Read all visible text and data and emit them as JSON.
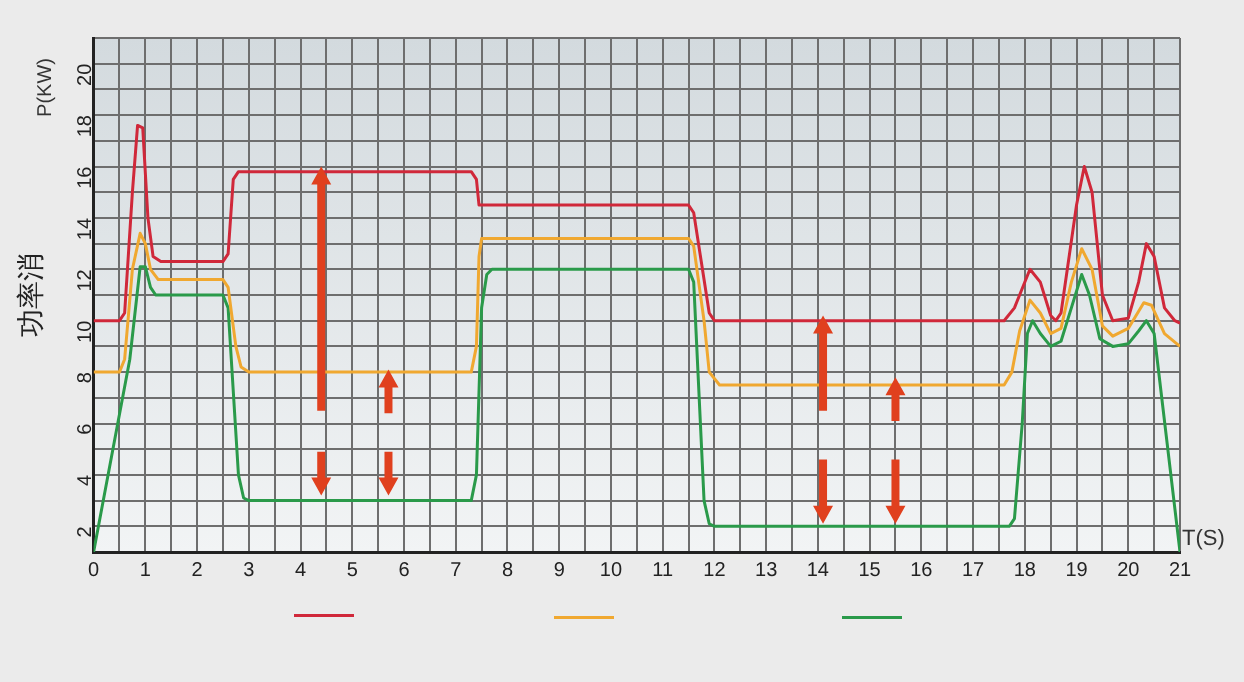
{
  "chart_data": {
    "type": "line",
    "ylabel": "功率消",
    "xlabel": "T(S)",
    "annotations": [
      "P(KW)"
    ],
    "xlim": [
      0,
      21
    ],
    "ylim": [
      1,
      21
    ],
    "xticks": [
      0,
      {
        "value": 0.5,
        "label": null
      },
      1,
      {
        "value": 1.5,
        "label": null
      },
      2,
      {
        "value": 2.5,
        "label": null
      },
      3,
      {
        "value": 3.5,
        "label": null
      },
      4,
      {
        "value": 4.5,
        "label": null
      },
      5,
      {
        "value": 5.5,
        "label": null
      },
      6,
      {
        "value": 6.5,
        "label": null
      },
      7,
      {
        "value": 7.5,
        "label": null
      },
      8,
      {
        "value": 8.5,
        "label": null
      },
      9,
      {
        "value": 9.5,
        "label": null
      },
      10,
      {
        "value": 10.5,
        "label": null
      },
      11,
      {
        "value": 11.5,
        "label": null
      },
      12,
      {
        "value": 12.5,
        "label": null
      },
      13,
      {
        "value": 13.5,
        "label": null
      },
      14,
      {
        "value": 14.5,
        "label": null
      },
      15,
      {
        "value": 15.5,
        "label": null
      },
      16,
      {
        "value": 16.5,
        "label": null
      },
      17,
      {
        "value": 17.5,
        "label": null
      },
      18,
      {
        "value": 18.5,
        "label": null
      },
      19,
      {
        "value": 19.5,
        "label": null
      },
      20,
      {
        "value": 20.5,
        "label": null
      },
      21
    ],
    "yticks": [
      {
        "value": 1,
        "label": null
      },
      2,
      {
        "value": 3,
        "label": null
      },
      4,
      {
        "value": 5,
        "label": null
      },
      6,
      {
        "value": 7,
        "label": null
      },
      8,
      {
        "value": 9,
        "label": null
      },
      10,
      {
        "value": 11,
        "label": null
      },
      12,
      {
        "value": 13,
        "label": null
      },
      14,
      {
        "value": 15,
        "label": null
      },
      16,
      {
        "value": 17,
        "label": null
      },
      18,
      {
        "value": 19,
        "label": null
      },
      20,
      {
        "value": 21,
        "label": null
      }
    ],
    "grid": true,
    "marker": "none",
    "line_style": "solid",
    "series": [
      {
        "color": "#d0283a",
        "x": [
          0,
          0.5,
          0.6,
          0.75,
          0.85,
          0.95,
          1.05,
          1.15,
          1.3,
          2.5,
          2.6,
          2.7,
          2.8,
          7.3,
          7.4,
          7.45,
          11.5,
          11.6,
          11.9,
          12,
          17.6,
          17.8,
          18.1,
          18.3,
          18.5,
          18.6,
          18.7,
          19,
          19.15,
          19.3,
          19.5,
          19.7,
          20,
          20.2,
          20.35,
          20.5,
          20.7,
          20.9,
          21
        ],
        "values": [
          10,
          10,
          10.3,
          15,
          17.6,
          17.5,
          14,
          12.5,
          12.3,
          12.3,
          12.6,
          15.5,
          15.8,
          15.8,
          15.5,
          14.5,
          14.5,
          14.2,
          10.3,
          10,
          10,
          10.5,
          12,
          11.5,
          10.2,
          10,
          10.3,
          14.5,
          16,
          15,
          11,
          10,
          10.1,
          11.5,
          13,
          12.5,
          10.5,
          10,
          9.9
        ]
      },
      {
        "color": "#f0a830",
        "x": [
          0,
          0.5,
          0.6,
          0.75,
          0.9,
          1,
          1.1,
          1.25,
          2.5,
          2.6,
          2.75,
          2.85,
          3,
          7.3,
          7.4,
          7.45,
          7.5,
          11.5,
          11.6,
          11.8,
          11.9,
          12.1,
          17.6,
          17.75,
          17.9,
          18.1,
          18.3,
          18.5,
          18.7,
          18.9,
          19.1,
          19.3,
          19.5,
          19.7,
          20,
          20.3,
          20.45,
          20.7,
          21
        ],
        "values": [
          8,
          8,
          8.5,
          12,
          13.4,
          13,
          12,
          11.6,
          11.6,
          11.3,
          9,
          8.2,
          8,
          8,
          9,
          12.5,
          13.2,
          13.2,
          12.9,
          10,
          8,
          7.5,
          7.5,
          8,
          9.6,
          10.8,
          10.3,
          9.5,
          9.7,
          11.5,
          12.8,
          12,
          9.8,
          9.4,
          9.7,
          10.7,
          10.6,
          9.5,
          9
        ]
      },
      {
        "color": "#2a9a4a",
        "x": [
          0,
          0.7,
          0.9,
          1,
          1.1,
          1.2,
          2.5,
          2.6,
          2.8,
          2.9,
          3,
          7.3,
          7.4,
          7.5,
          7.6,
          7.7,
          11.5,
          11.6,
          11.8,
          11.9,
          12,
          17.7,
          17.8,
          17.95,
          18.05,
          18.15,
          18.3,
          18.5,
          18.7,
          18.9,
          19.1,
          19.25,
          19.45,
          19.7,
          20,
          20.2,
          20.35,
          20.5,
          21
        ],
        "values": [
          1,
          8.5,
          12.1,
          12.1,
          11.3,
          11,
          11,
          10.5,
          4,
          3.1,
          3,
          3,
          4,
          10.5,
          11.8,
          12,
          12,
          11.5,
          3,
          2.1,
          2,
          2,
          2.3,
          6,
          9.5,
          10,
          9.5,
          9,
          9.2,
          10.5,
          11.8,
          11,
          9.3,
          9,
          9.1,
          9.6,
          10,
          9.5,
          1
        ]
      }
    ]
  }
}
